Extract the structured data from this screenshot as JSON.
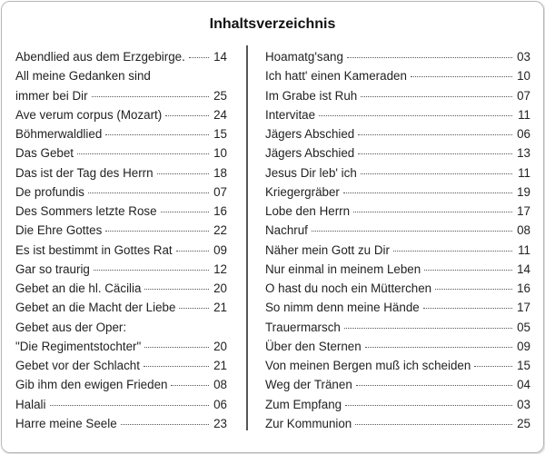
{
  "title": "Inhaltsverzeichnis",
  "left": [
    {
      "title": "Abendlied aus dem Erzgebirge.",
      "page": "14"
    },
    {
      "title": "All meine Gedanken sind",
      "page": ""
    },
    {
      "title": "immer bei Dir",
      "page": "25"
    },
    {
      "title": "Ave verum corpus (Mozart)",
      "page": "24"
    },
    {
      "title": "Böhmerwaldlied",
      "page": "15"
    },
    {
      "title": "Das Gebet",
      "page": "10"
    },
    {
      "title": "Das ist der Tag des Herrn",
      "page": "18"
    },
    {
      "title": "De profundis",
      "page": "07"
    },
    {
      "title": "Des Sommers letzte Rose",
      "page": "16"
    },
    {
      "title": "Die Ehre Gottes",
      "page": "22"
    },
    {
      "title": "Es ist bestimmt in Gottes Rat",
      "page": "09"
    },
    {
      "title": "Gar so traurig",
      "page": "12"
    },
    {
      "title": "Gebet an die hl. Cäcilia",
      "page": "20"
    },
    {
      "title": "Gebet an die Macht der Liebe",
      "page": "21"
    },
    {
      "title": "Gebet aus der Oper:",
      "page": ""
    },
    {
      "title": "\"Die Regimentstochter\"",
      "page": "20"
    },
    {
      "title": "Gebet vor der Schlacht",
      "page": "21"
    },
    {
      "title": "Gib ihm den ewigen Frieden",
      "page": "08"
    },
    {
      "title": "Halali",
      "page": "06"
    },
    {
      "title": "Harre meine Seele",
      "page": "23"
    }
  ],
  "right": [
    {
      "title": "Hoamatg'sang",
      "page": "03"
    },
    {
      "title": "Ich hatt' einen Kameraden",
      "page": "10"
    },
    {
      "title": "Im Grabe ist Ruh",
      "page": "07"
    },
    {
      "title": "Intervitae",
      "page": "11"
    },
    {
      "title": "Jägers Abschied",
      "page": "06"
    },
    {
      "title": "Jägers Abschied",
      "page": "13"
    },
    {
      "title": "Jesus Dir leb' ich",
      "page": "11"
    },
    {
      "title": "Kriegergräber",
      "page": "19"
    },
    {
      "title": "Lobe den Herrn",
      "page": "17"
    },
    {
      "title": "Nachruf",
      "page": "08"
    },
    {
      "title": "Näher mein Gott zu Dir",
      "page": "11"
    },
    {
      "title": "Nur einmal in meinem Leben",
      "page": "14"
    },
    {
      "title": "O hast du noch ein Mütterchen",
      "page": "16"
    },
    {
      "title": "So nimm denn meine Hände",
      "page": "17"
    },
    {
      "title": "Trauermarsch",
      "page": "05"
    },
    {
      "title": "Über den Sternen",
      "page": "09"
    },
    {
      "title": "Von meinen Bergen muß ich scheiden",
      "page": "15"
    },
    {
      "title": "Weg der Tränen",
      "page": "04"
    },
    {
      "title": "Zum Empfang",
      "page": "03"
    },
    {
      "title": "Zur Kommunion",
      "page": "25"
    }
  ]
}
